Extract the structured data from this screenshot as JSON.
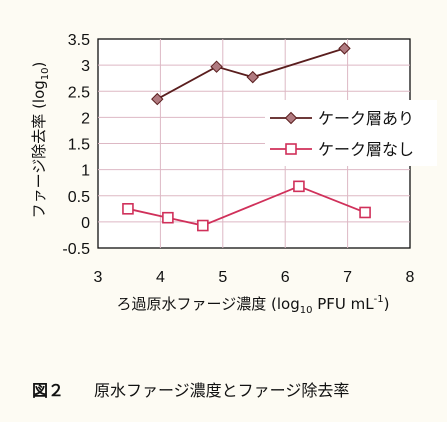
{
  "chart_data": {
    "type": "line",
    "xlabel_main": "ろ過原水ファージ濃度 (log",
    "xlabel_sub": "10",
    "xlabel_mid": " PFU mL",
    "xlabel_sup": "-1",
    "xlabel_end": ")",
    "ylabel_main": "ファージ除去率 (log",
    "ylabel_sub": "10",
    "ylabel_end": ")",
    "xlim": [
      3,
      8
    ],
    "ylim": [
      -0.5,
      3.5
    ],
    "xticks": [
      "3",
      "4",
      "5",
      "6",
      "7",
      "8"
    ],
    "yticks": [
      "-0.5",
      "0",
      "0.5",
      "1",
      "1.5",
      "2",
      "2.5",
      "3",
      "3.5"
    ],
    "grid": true,
    "legend_position": "right",
    "series": [
      {
        "name": "ケーク層あり",
        "color": "#5a1e1e",
        "marker_fill": "#b07a80",
        "marker": "diamond",
        "x": [
          3.95,
          4.9,
          5.48,
          6.95
        ],
        "y": [
          2.35,
          2.97,
          2.77,
          3.32
        ]
      },
      {
        "name": "ケーク層なし",
        "color": "#d0305a",
        "marker_fill": "#ffffff",
        "marker": "square",
        "x": [
          3.48,
          4.12,
          4.68,
          6.22,
          7.28
        ],
        "y": [
          0.25,
          0.08,
          -0.07,
          0.68,
          0.18
        ]
      }
    ]
  },
  "caption": {
    "label": "図２",
    "text": "原水ファージ濃度とファージ除去率"
  }
}
